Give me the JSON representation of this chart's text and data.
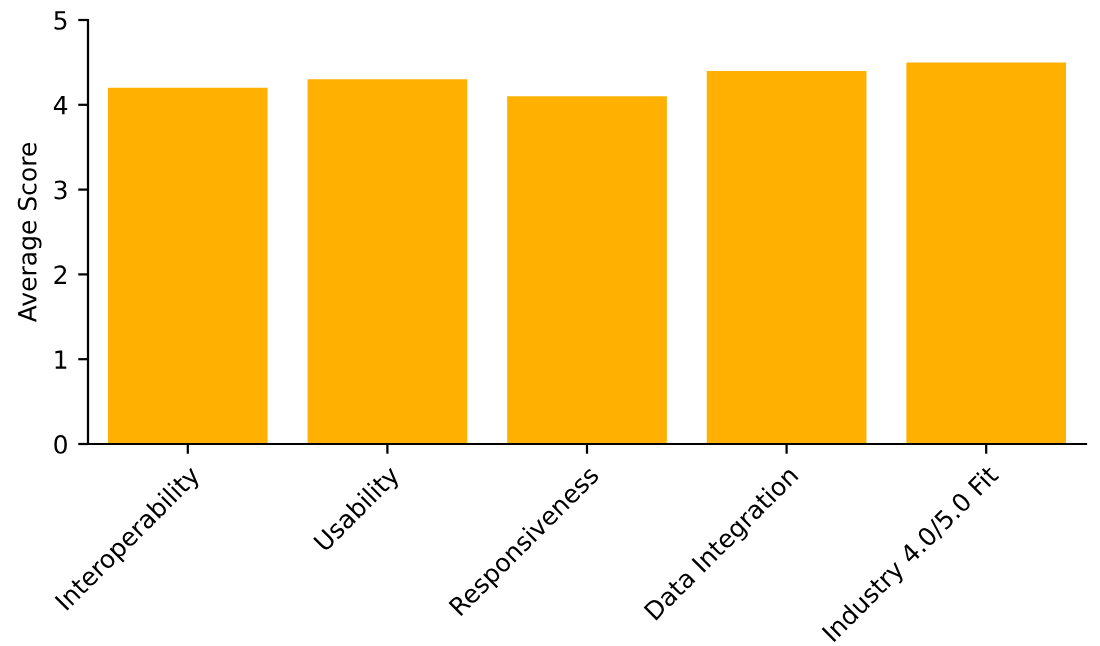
{
  "chart_data": {
    "type": "bar",
    "ylabel": "Average Score",
    "categories": [
      "Interoperability",
      "Usability",
      "Responsiveness",
      "Data Integration",
      "Industry 4.0/5.0 Fit"
    ],
    "values": [
      4.2,
      4.3,
      4.1,
      4.4,
      4.5
    ],
    "color": "#ffb000",
    "ylim": [
      0,
      5
    ],
    "yticks": [
      0,
      1,
      2,
      3,
      4,
      5
    ],
    "grid": false,
    "legend": false
  }
}
